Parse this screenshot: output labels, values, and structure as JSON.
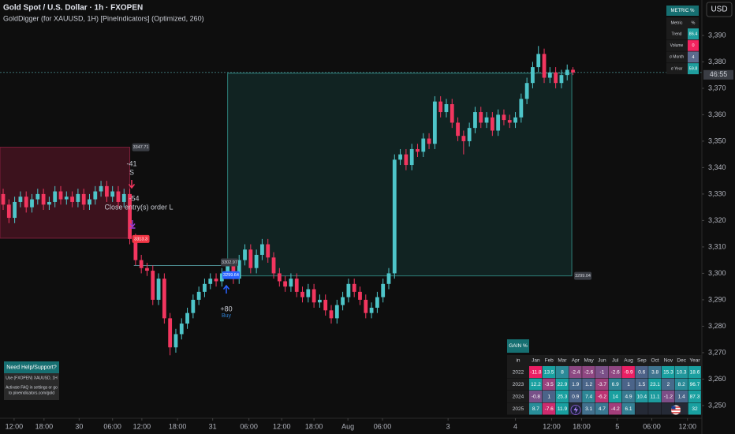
{
  "header": {
    "symbol": "Gold Spot / U.S. Dollar · 1h · FXOPEN",
    "indicator": "GoldDigger (for XAUUSD, 1H) [PineIndicators] (Optimized, 260)"
  },
  "currency": "USD",
  "chart_data": {
    "type": "candlestick",
    "open": [
      3330,
      3326,
      3321,
      3327,
      3329,
      3325,
      3328,
      3330,
      3326,
      3327,
      3331,
      3328,
      3329,
      3327,
      3330,
      3326,
      3328,
      3331,
      3333,
      3329,
      3331,
      3327,
      3330,
      3313,
      3305,
      3302,
      3301,
      3290,
      3298,
      3283,
      3272,
      3277,
      3281,
      3285,
      3290,
      3293,
      3296,
      3298,
      3297,
      3300,
      3303,
      3298,
      3305,
      3309,
      3302,
      3307,
      3311,
      3306,
      3300,
      3297,
      3295,
      3298,
      3293,
      3291,
      3294,
      3289,
      3290,
      3286,
      3283,
      3288,
      3291,
      3296,
      3293,
      3290,
      3285,
      3287,
      3291,
      3296,
      3300,
      3343,
      3345,
      3341,
      3347,
      3346,
      3351,
      3349,
      3365,
      3361,
      3364,
      3357,
      3352,
      3350,
      3355,
      3361,
      3357,
      3359,
      3354,
      3360,
      3358,
      3357,
      3359,
      3366,
      3372,
      3378,
      3383,
      3374,
      3376,
      3372,
      3375,
      3377
    ],
    "high": [
      3332,
      3328,
      3329,
      3331,
      3331,
      3330,
      3332,
      3332,
      3329,
      3333,
      3333,
      3331,
      3331,
      3332,
      3332,
      3330,
      3333,
      3335,
      3335,
      3333,
      3333,
      3332,
      3332,
      3315,
      3307,
      3304,
      3303,
      3300,
      3300,
      3285,
      3279,
      3283,
      3287,
      3292,
      3295,
      3298,
      3300,
      3300,
      3302,
      3305,
      3305,
      3307,
      3311,
      3311,
      3309,
      3313,
      3313,
      3308,
      3302,
      3299,
      3300,
      3300,
      3295,
      3296,
      3296,
      3292,
      3292,
      3288,
      3290,
      3293,
      3298,
      3298,
      3295,
      3292,
      3289,
      3293,
      3298,
      3302,
      3345,
      3347,
      3347,
      3349,
      3349,
      3353,
      3353,
      3367,
      3367,
      3366,
      3366,
      3359,
      3354,
      3357,
      3363,
      3363,
      3361,
      3361,
      3362,
      3362,
      3360,
      3361,
      3368,
      3374,
      3380,
      3386,
      3385,
      3378,
      3378,
      3377,
      3379,
      3378
    ],
    "low": [
      3324,
      3319,
      3319,
      3325,
      3323,
      3323,
      3326,
      3324,
      3324,
      3325,
      3326,
      3326,
      3325,
      3325,
      3324,
      3324,
      3326,
      3329,
      3327,
      3327,
      3325,
      3325,
      3311,
      3303,
      3300,
      3299,
      3288,
      3288,
      3281,
      3269,
      3270,
      3275,
      3279,
      3283,
      3288,
      3291,
      3294,
      3295,
      3295,
      3298,
      3296,
      3296,
      3303,
      3300,
      3300,
      3305,
      3304,
      3298,
      3295,
      3293,
      3293,
      3291,
      3289,
      3289,
      3287,
      3287,
      3284,
      3281,
      3281,
      3286,
      3289,
      3291,
      3288,
      3283,
      3283,
      3285,
      3289,
      3294,
      3298,
      3341,
      3339,
      3339,
      3344,
      3344,
      3347,
      3347,
      3359,
      3359,
      3355,
      3350,
      3345,
      3348,
      3353,
      3355,
      3355,
      3352,
      3352,
      3356,
      3355,
      3355,
      3357,
      3364,
      3370,
      3376,
      3372,
      3372,
      3370,
      3370,
      3373,
      3375
    ],
    "close": [
      3326,
      3321,
      3327,
      3329,
      3325,
      3328,
      3330,
      3326,
      3327,
      3331,
      3328,
      3329,
      3327,
      3330,
      3326,
      3328,
      3331,
      3333,
      3329,
      3331,
      3327,
      3330,
      3313,
      3305,
      3302,
      3301,
      3290,
      3298,
      3283,
      3272,
      3277,
      3281,
      3285,
      3290,
      3293,
      3296,
      3298,
      3297,
      3300,
      3303,
      3298,
      3305,
      3309,
      3302,
      3307,
      3311,
      3306,
      3300,
      3297,
      3295,
      3298,
      3293,
      3291,
      3294,
      3289,
      3290,
      3286,
      3283,
      3288,
      3291,
      3296,
      3293,
      3290,
      3285,
      3287,
      3291,
      3296,
      3300,
      3343,
      3345,
      3341,
      3347,
      3346,
      3351,
      3349,
      3365,
      3361,
      3364,
      3357,
      3352,
      3350,
      3355,
      3361,
      3357,
      3359,
      3354,
      3360,
      3358,
      3357,
      3359,
      3366,
      3372,
      3378,
      3383,
      3374,
      3376,
      3372,
      3375,
      3377,
      3376
    ],
    "up_color": "#4ec5c9",
    "down_color": "#f2365f",
    "xlim": [
      -0.55,
      121.4
    ],
    "xticks": [
      {
        "value": 1.9,
        "label": "12:00"
      },
      {
        "value": 7.1,
        "label": "18:00"
      },
      {
        "value": 13.2,
        "label": "30"
      },
      {
        "value": 19.0,
        "label": "06:00"
      },
      {
        "value": 24.1,
        "label": "12:00"
      },
      {
        "value": 30.3,
        "label": "18:00"
      },
      {
        "value": 36.4,
        "label": "31"
      },
      {
        "value": 42.7,
        "label": "06:00"
      },
      {
        "value": 48.4,
        "label": "12:00"
      },
      {
        "value": 54.0,
        "label": "18:00"
      },
      {
        "value": 59.9,
        "label": "Aug"
      },
      {
        "value": 65.9,
        "label": "06:00"
      },
      {
        "value": 77.3,
        "label": "3"
      },
      {
        "value": 89.0,
        "label": "4"
      },
      {
        "value": 95.3,
        "label": "12:00"
      },
      {
        "value": 100.5,
        "label": "18:00"
      },
      {
        "value": 106.7,
        "label": "5"
      },
      {
        "value": 112.7,
        "label": "06:00"
      },
      {
        "value": 118.9,
        "label": "12:00"
      }
    ],
    "ylim": [
      3245.2,
      3403.4
    ],
    "yticks": [
      {
        "value": 3250,
        "label": "3,250"
      },
      {
        "value": 3260,
        "label": "3,260"
      },
      {
        "value": 3270,
        "label": "3,270"
      },
      {
        "value": 3280,
        "label": "3,280"
      },
      {
        "value": 3290,
        "label": "3,290"
      },
      {
        "value": 3300,
        "label": "3,300"
      },
      {
        "value": 3310,
        "label": "3,310"
      },
      {
        "value": 3320,
        "label": "3,320"
      },
      {
        "value": 3330,
        "label": "3,330"
      },
      {
        "value": 3340,
        "label": "3,340"
      },
      {
        "value": 3350,
        "label": "3,350"
      },
      {
        "value": 3360,
        "label": "3,360"
      },
      {
        "value": 3370,
        "label": "3,370"
      },
      {
        "value": 3380,
        "label": "3,380"
      },
      {
        "value": 3390,
        "label": "3,390"
      }
    ],
    "countdown": "46:55",
    "short_position": {
      "start": -0.55,
      "end": 22,
      "top": 3347.71,
      "bottom": 3313.3
    },
    "long_position": {
      "start": 39,
      "end": 98.8,
      "top": 3375.7,
      "bottom": 3299.04
    },
    "entry_line": {
      "start": 22.7,
      "end": 38.5,
      "value": 3302.97
    },
    "buy_price": 3299.64,
    "short_signal": {
      "pnl": "-41",
      "label": "S"
    },
    "close_signal": {
      "pnl": "-54",
      "label": "Close entry(s) order L"
    },
    "buy_signal": {
      "pnl": "+80",
      "label": "Buy"
    }
  },
  "metric_table": {
    "title": "METRIC %",
    "header": [
      "Metric",
      "%"
    ],
    "rows": [
      {
        "name": "Trend",
        "value": 86.4,
        "color": "#1f9e9e"
      },
      {
        "name": "Volume",
        "value": 0,
        "color": "#f2245f"
      },
      {
        "name": "σ Month",
        "value": 4,
        "color": "#5b6b8e"
      },
      {
        "name": "σ Year",
        "value": 59.8,
        "color": "#1f9e9e"
      }
    ]
  },
  "gain_table": {
    "title": "GAIN %",
    "columns": [
      "in",
      "Jan",
      "Feb",
      "Mar",
      "Apr",
      "May",
      "Jun",
      "Jul",
      "Aug",
      "Sep",
      "Oct",
      "Nov",
      "Dec",
      "Year"
    ],
    "rows": [
      {
        "year": "2022",
        "values": [
          -11.8,
          13.5,
          8,
          -2.4,
          -2.6,
          -1,
          -2.6,
          -9.9,
          0.6,
          3.8,
          15.3,
          10.3,
          18.6
        ]
      },
      {
        "year": "2023",
        "values": [
          12.2,
          -3.5,
          22.9,
          1.9,
          1.2,
          -3.7,
          6.9,
          1,
          1.5,
          23.1,
          2,
          8.2,
          96.7
        ]
      },
      {
        "year": "2024",
        "values": [
          -0.8,
          1,
          25.3,
          0.9,
          7.4,
          -6.2,
          14,
          4.9,
          10.4,
          11.1,
          -1.2,
          1.4,
          87.3
        ]
      },
      {
        "year": "2025",
        "values": [
          8.7,
          -7.6,
          11.9,
          null,
          3.1,
          4.7,
          -4.2,
          6.1,
          null,
          null,
          null,
          null,
          32
        ]
      }
    ]
  },
  "help_box": {
    "title": "Need Help/Support?",
    "lines": [
      "Use (FXOPEN) XAUUSD, 1H",
      "Activate FAQ in settings or go",
      "to pineindicators.com/gold"
    ]
  }
}
